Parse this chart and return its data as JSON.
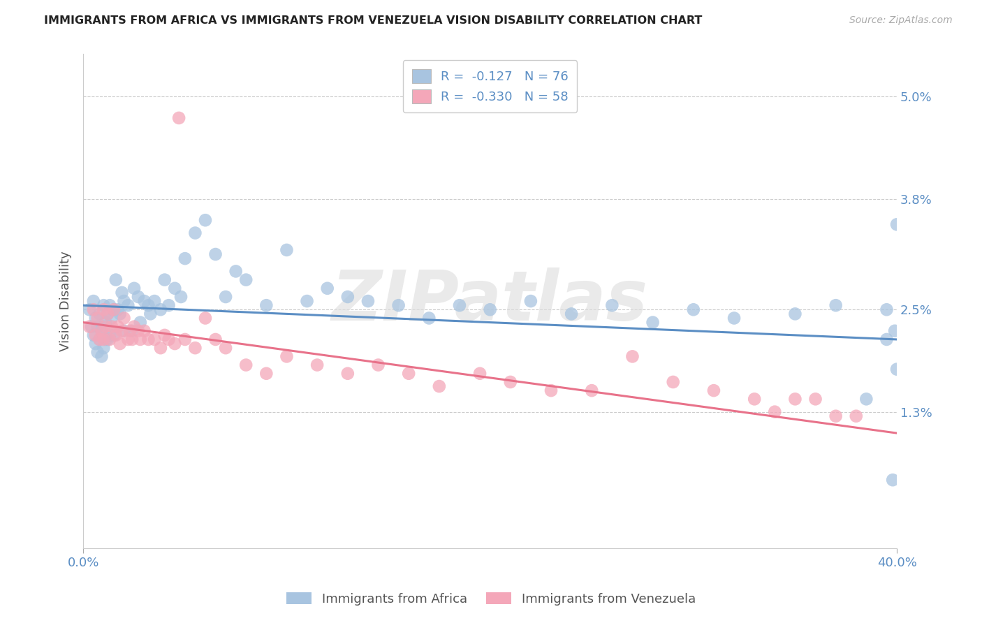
{
  "title": "IMMIGRANTS FROM AFRICA VS IMMIGRANTS FROM VENEZUELA VISION DISABILITY CORRELATION CHART",
  "source": "Source: ZipAtlas.com",
  "ylabel": "Vision Disability",
  "xlim": [
    0.0,
    0.4
  ],
  "ylim": [
    -0.003,
    0.055
  ],
  "legend_africa_r": "-0.127",
  "legend_africa_n": "76",
  "legend_venezuela_r": "-0.330",
  "legend_venezuela_n": "58",
  "color_africa": "#a8c4e0",
  "color_venezuela": "#f4a7b9",
  "color_africa_line": "#5b8ec4",
  "color_venezuela_line": "#e8728a",
  "background_color": "#ffffff",
  "watermark": "ZIPatlas",
  "africa_line_start": 0.0255,
  "africa_line_end": 0.0215,
  "venezuela_line_start": 0.0235,
  "venezuela_line_end": 0.0105,
  "africa_x": [
    0.003,
    0.004,
    0.005,
    0.005,
    0.006,
    0.006,
    0.007,
    0.007,
    0.008,
    0.008,
    0.009,
    0.009,
    0.01,
    0.01,
    0.01,
    0.011,
    0.011,
    0.012,
    0.012,
    0.013,
    0.013,
    0.014,
    0.015,
    0.015,
    0.016,
    0.017,
    0.018,
    0.019,
    0.02,
    0.02,
    0.022,
    0.024,
    0.025,
    0.027,
    0.028,
    0.03,
    0.032,
    0.033,
    0.035,
    0.038,
    0.04,
    0.042,
    0.045,
    0.048,
    0.05,
    0.055,
    0.06,
    0.065,
    0.07,
    0.075,
    0.08,
    0.09,
    0.1,
    0.11,
    0.12,
    0.13,
    0.14,
    0.155,
    0.17,
    0.185,
    0.2,
    0.22,
    0.24,
    0.26,
    0.28,
    0.3,
    0.32,
    0.35,
    0.37,
    0.385,
    0.395,
    0.395,
    0.398,
    0.399,
    0.4,
    0.4
  ],
  "africa_y": [
    0.025,
    0.023,
    0.026,
    0.022,
    0.024,
    0.021,
    0.023,
    0.02,
    0.0245,
    0.0215,
    0.0225,
    0.0195,
    0.0255,
    0.023,
    0.0205,
    0.0235,
    0.0215,
    0.0245,
    0.0215,
    0.0255,
    0.022,
    0.024,
    0.025,
    0.022,
    0.0285,
    0.025,
    0.0245,
    0.027,
    0.026,
    0.0225,
    0.0255,
    0.0225,
    0.0275,
    0.0265,
    0.0235,
    0.026,
    0.0255,
    0.0245,
    0.026,
    0.025,
    0.0285,
    0.0255,
    0.0275,
    0.0265,
    0.031,
    0.034,
    0.0355,
    0.0315,
    0.0265,
    0.0295,
    0.0285,
    0.0255,
    0.032,
    0.026,
    0.0275,
    0.0265,
    0.026,
    0.0255,
    0.024,
    0.0255,
    0.025,
    0.026,
    0.0245,
    0.0255,
    0.0235,
    0.025,
    0.024,
    0.0245,
    0.0255,
    0.0145,
    0.025,
    0.0215,
    0.005,
    0.0225,
    0.018,
    0.035
  ],
  "venezuela_x": [
    0.003,
    0.005,
    0.006,
    0.007,
    0.008,
    0.009,
    0.01,
    0.01,
    0.011,
    0.012,
    0.013,
    0.014,
    0.015,
    0.016,
    0.017,
    0.018,
    0.019,
    0.02,
    0.022,
    0.023,
    0.024,
    0.025,
    0.027,
    0.028,
    0.03,
    0.032,
    0.035,
    0.038,
    0.04,
    0.042,
    0.045,
    0.05,
    0.055,
    0.06,
    0.065,
    0.07,
    0.08,
    0.09,
    0.1,
    0.115,
    0.13,
    0.145,
    0.16,
    0.175,
    0.195,
    0.21,
    0.23,
    0.25,
    0.27,
    0.29,
    0.31,
    0.33,
    0.34,
    0.35,
    0.36,
    0.37,
    0.38,
    0.047
  ],
  "venezuela_y": [
    0.023,
    0.025,
    0.022,
    0.024,
    0.0215,
    0.0225,
    0.025,
    0.0215,
    0.023,
    0.0245,
    0.0215,
    0.023,
    0.025,
    0.022,
    0.023,
    0.021,
    0.0225,
    0.024,
    0.0215,
    0.0225,
    0.0215,
    0.023,
    0.0225,
    0.0215,
    0.0225,
    0.0215,
    0.0215,
    0.0205,
    0.022,
    0.0215,
    0.021,
    0.0215,
    0.0205,
    0.024,
    0.0215,
    0.0205,
    0.0185,
    0.0175,
    0.0195,
    0.0185,
    0.0175,
    0.0185,
    0.0175,
    0.016,
    0.0175,
    0.0165,
    0.0155,
    0.0155,
    0.0195,
    0.0165,
    0.0155,
    0.0145,
    0.013,
    0.0145,
    0.0145,
    0.0125,
    0.0125,
    0.0475
  ]
}
